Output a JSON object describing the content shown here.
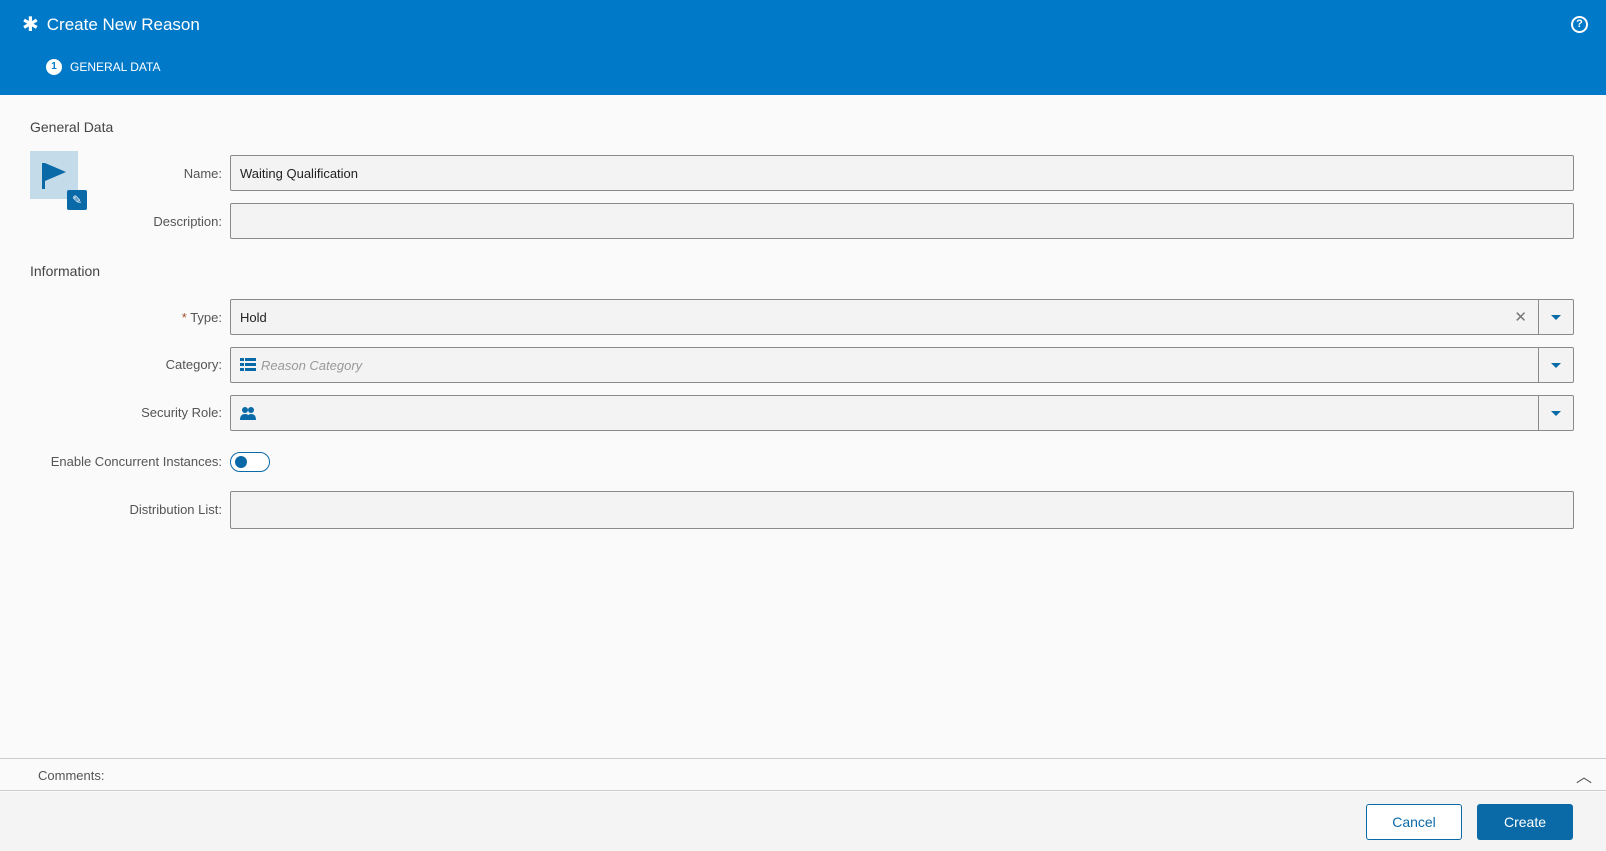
{
  "header": {
    "title": "Create New Reason",
    "step_number": "1",
    "step_label": "GENERAL DATA",
    "help_icon": "?",
    "title_icon": "✱"
  },
  "general": {
    "section_title": "General Data",
    "name_label": "Name:",
    "name_value": "Waiting Qualification",
    "description_label": "Description:",
    "description_value": ""
  },
  "information": {
    "section_title": "Information",
    "required_mark": "*",
    "type_label": "Type:",
    "type_value": "Hold",
    "category_label": "Category:",
    "category_placeholder": "Reason Category",
    "security_role_label": "Security Role:",
    "concurrent_label": "Enable Concurrent Instances:",
    "concurrent_enabled": false,
    "distribution_label": "Distribution List:"
  },
  "comments": {
    "label": "Comments:"
  },
  "footer": {
    "cancel": "Cancel",
    "create": "Create"
  },
  "colors": {
    "header": "#0079c8",
    "accent": "#0a6aa8"
  }
}
